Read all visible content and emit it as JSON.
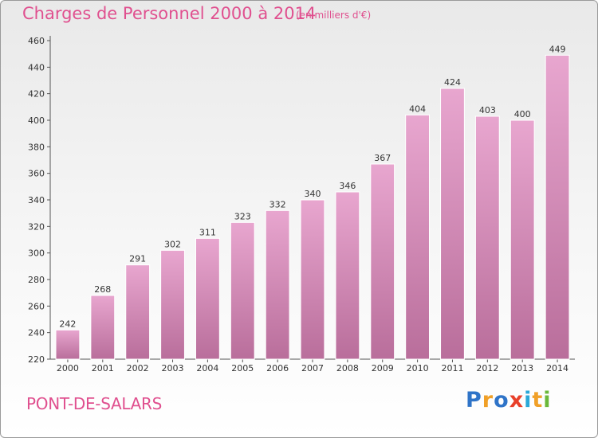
{
  "header": {
    "title": "Charges de Personnel 2000 à 2014",
    "subtitle": "(en milliers d'€)"
  },
  "footer": {
    "town": "PONT-DE-SALARS",
    "logo": [
      "P",
      "r",
      "o",
      "x",
      "i",
      "t",
      "i"
    ],
    "logo_colors": [
      "#2f74c8",
      "#f0a028",
      "#2f74c8",
      "#e8402a",
      "#2aa8d8",
      "#f0a028",
      "#6ab83a"
    ]
  },
  "colors": {
    "accent": "#e0508f",
    "bar_top": "#e8a6cf",
    "bar_bottom": "#b96e9b",
    "bar_edge": "#ffffff"
  },
  "chart_data": {
    "type": "bar",
    "title": "Charges de Personnel 2000 à 2014",
    "subtitle": "(en milliers d'€)",
    "xlabel": "",
    "ylabel": "",
    "categories": [
      "2000",
      "2001",
      "2002",
      "2003",
      "2004",
      "2005",
      "2006",
      "2007",
      "2008",
      "2009",
      "2010",
      "2011",
      "2012",
      "2013",
      "2014"
    ],
    "values": [
      242,
      268,
      291,
      302,
      311,
      323,
      332,
      340,
      346,
      367,
      404,
      424,
      403,
      400,
      449
    ],
    "ylim": [
      220,
      460
    ],
    "yticks": [
      220,
      240,
      260,
      280,
      300,
      320,
      340,
      360,
      380,
      400,
      420,
      440,
      460
    ],
    "grid": false,
    "data_labels": true
  }
}
